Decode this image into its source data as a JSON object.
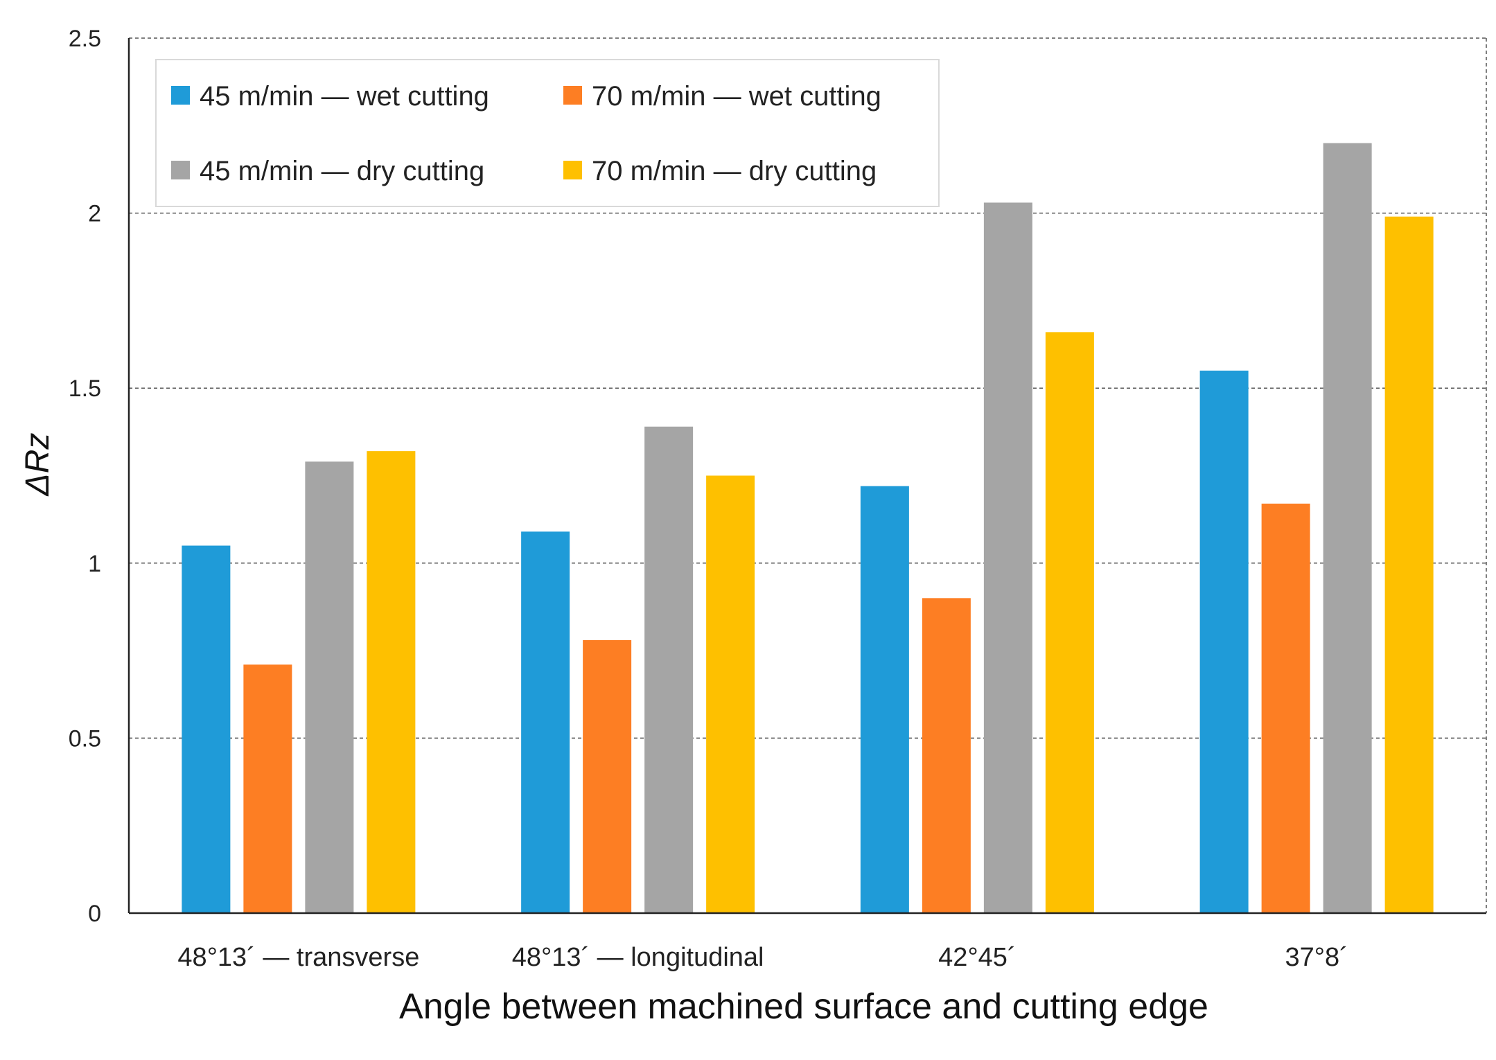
{
  "chart_data": {
    "type": "bar",
    "title": "",
    "xlabel": "Angle between machined surface and cutting edge",
    "ylabel": "ΔRz",
    "ylim": [
      0,
      2.5
    ],
    "yticks": [
      "0",
      "0.5",
      "1",
      "1.5",
      "2",
      "2.5"
    ],
    "ytick_values": [
      0,
      0.5,
      1,
      1.5,
      2,
      2.5
    ],
    "grid": true,
    "legend_position": "top-left",
    "categories": [
      "48°13´ — transverse",
      "48°13´ — longitudinal",
      "42°45´",
      "37°8´"
    ],
    "series": [
      {
        "name": "45 m/min — wet cutting",
        "color": "#1f9bd8",
        "values": [
          1.05,
          1.09,
          1.22,
          1.55
        ]
      },
      {
        "name": "70 m/min — wet cutting",
        "color": "#fd7e23",
        "values": [
          0.71,
          0.78,
          0.9,
          1.17
        ]
      },
      {
        "name": "45 m/min — dry cutting",
        "color": "#a5a5a5",
        "values": [
          1.29,
          1.39,
          2.03,
          2.2
        ]
      },
      {
        "name": "70 m/min — dry cutting",
        "color": "#fec000",
        "values": [
          1.32,
          1.25,
          1.66,
          1.99
        ]
      }
    ]
  }
}
